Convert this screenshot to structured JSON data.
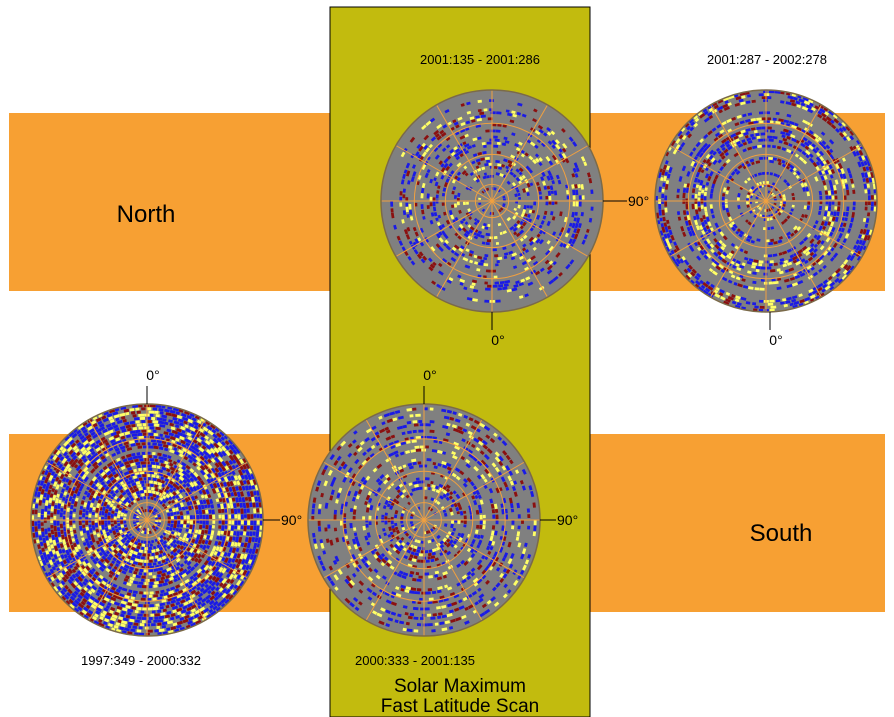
{
  "colors": {
    "band": "#f7a033",
    "band_stroke": "#e88a1e",
    "panel": "#c2bb0e",
    "disc": "#808080",
    "grid": "#f0a040",
    "blue": "#1a1ae6",
    "yellow": "#ffff66",
    "red": "#8b1010"
  },
  "labels": {
    "north": "North",
    "south": "South",
    "panel_line1": "Solar Maximum",
    "panel_line2": "Fast Latitude Scan",
    "deg0": "0°",
    "deg90": "90°"
  },
  "plots": [
    {
      "id": "north-fast",
      "period": "2001:135 - 2001:286",
      "density": 0.35
    },
    {
      "id": "north-right",
      "period": "2001:287 - 2002:278",
      "density": 0.6
    },
    {
      "id": "south-left",
      "period": "1997:349 - 2000:332",
      "density": 0.8
    },
    {
      "id": "south-fast",
      "period": "2000:333 - 2001:135",
      "density": 0.45
    }
  ]
}
